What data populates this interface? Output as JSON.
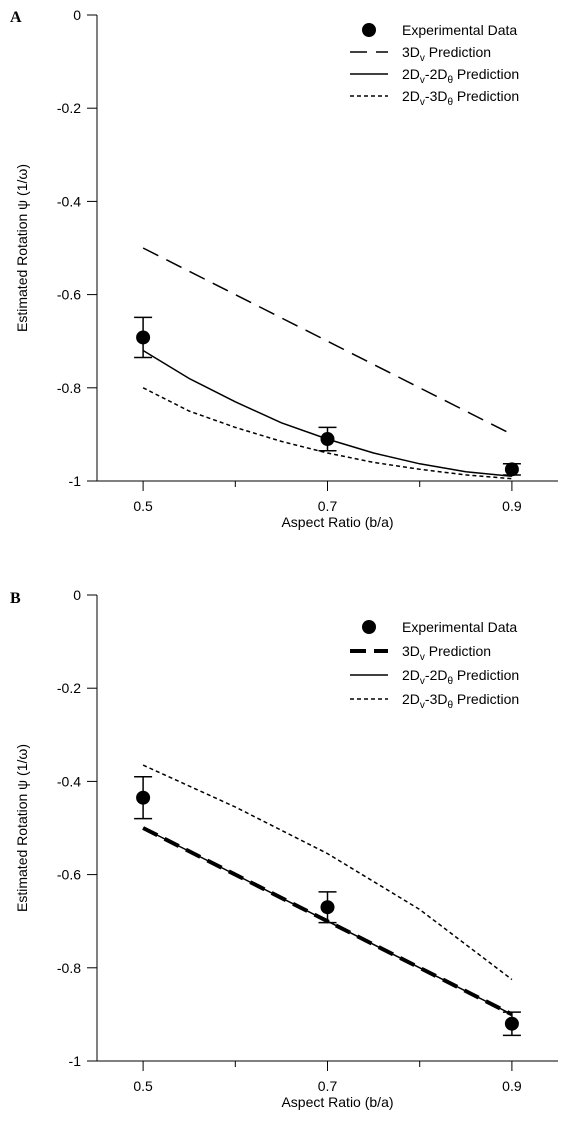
{
  "chart_data": [
    {
      "type": "line",
      "panel_label": "A",
      "xlabel": "Aspect Ratio (b/a)",
      "ylabel": "Estimated Rotation ψ  (1/ω)",
      "xlim": [
        0.45,
        0.95
      ],
      "ylim": [
        -1,
        0
      ],
      "xticks_major": [
        0.5,
        0.7,
        0.9
      ],
      "xticks_minor": [
        0.6,
        0.8
      ],
      "yticks": [
        0,
        -0.2,
        -0.4,
        -0.6,
        -0.8,
        -1
      ],
      "ytick_labels": [
        "0",
        "-0.2",
        "-0.4",
        "-0.6",
        "-0.8",
        "-1"
      ],
      "xtick_labels": [
        "0.5",
        "0.7",
        "0.9"
      ],
      "legend_position": "top-right",
      "legend": [
        {
          "key": "experimental",
          "text": "Experimental Data"
        },
        {
          "key": "3dv",
          "pre": "3D",
          "sub": "v",
          "post": " Prediction"
        },
        {
          "key": "2dv2dth",
          "pre": "2D",
          "sub": "v",
          "mid": "-2D",
          "sub2": "θ",
          "post": " Prediction"
        },
        {
          "key": "2dv3dth",
          "pre": "2D",
          "sub": "v",
          "mid": "-3D",
          "sub2": "θ",
          "post": " Prediction"
        }
      ],
      "experimental": {
        "x": [
          0.5,
          0.7,
          0.9
        ],
        "y": [
          -0.692,
          -0.91,
          -0.975
        ],
        "err": [
          0.043,
          0.025,
          0.012
        ]
      },
      "series": [
        {
          "key": "3dv",
          "style": "long-dash",
          "stroke_width": 1.5,
          "x": [
            0.5,
            0.9
          ],
          "y": [
            -0.5,
            -0.9
          ]
        },
        {
          "key": "2dv2dth",
          "style": "solid",
          "stroke_width": 1.5,
          "x": [
            0.5,
            0.55,
            0.6,
            0.65,
            0.7,
            0.75,
            0.8,
            0.85,
            0.9
          ],
          "y": [
            -0.72,
            -0.78,
            -0.83,
            -0.875,
            -0.91,
            -0.94,
            -0.963,
            -0.98,
            -0.99
          ]
        },
        {
          "key": "2dv3dth",
          "style": "short-dash",
          "stroke_width": 1.5,
          "x": [
            0.5,
            0.55,
            0.6,
            0.65,
            0.7,
            0.75,
            0.8,
            0.85,
            0.9
          ],
          "y": [
            -0.8,
            -0.85,
            -0.885,
            -0.915,
            -0.94,
            -0.96,
            -0.975,
            -0.987,
            -0.995
          ]
        }
      ]
    },
    {
      "type": "line",
      "panel_label": "B",
      "xlabel": "Aspect Ratio (b/a)",
      "ylabel": "Estimated Rotation ψ  (1/ω)",
      "xlim": [
        0.45,
        0.95
      ],
      "ylim": [
        -1,
        0
      ],
      "xticks_major": [
        0.5,
        0.7,
        0.9
      ],
      "xticks_minor": [
        0.6,
        0.8
      ],
      "yticks": [
        0,
        -0.2,
        -0.4,
        -0.6,
        -0.8,
        -1
      ],
      "ytick_labels": [
        "0",
        "-0.2",
        "-0.4",
        "-0.6",
        "-0.8",
        "-1"
      ],
      "xtick_labels": [
        "0.5",
        "0.7",
        "0.9"
      ],
      "legend_position": "top-right",
      "legend": [
        {
          "key": "experimental",
          "text": "Experimental Data"
        },
        {
          "key": "3dv",
          "pre": "3D",
          "sub": "v",
          "post": " Prediction"
        },
        {
          "key": "2dv2dth",
          "pre": "2D",
          "sub": "v",
          "mid": "-2D",
          "sub2": "θ",
          "post": " Prediction"
        },
        {
          "key": "2dv3dth",
          "pre": "2D",
          "sub": "v",
          "mid": "-3D",
          "sub2": "θ",
          "post": " Prediction"
        }
      ],
      "experimental": {
        "x": [
          0.5,
          0.7,
          0.9
        ],
        "y": [
          -0.435,
          -0.67,
          -0.92
        ],
        "err": [
          0.045,
          0.033,
          0.025
        ]
      },
      "series": [
        {
          "key": "3dv",
          "style": "bold-dash",
          "stroke_width": 4,
          "x": [
            0.5,
            0.9
          ],
          "y": [
            -0.5,
            -0.9
          ]
        },
        {
          "key": "2dv2dth",
          "style": "solid",
          "stroke_width": 1.5,
          "x": [
            0.5,
            0.9
          ],
          "y": [
            -0.5,
            -0.9
          ]
        },
        {
          "key": "2dv3dth",
          "style": "short-dash",
          "stroke_width": 1.5,
          "x": [
            0.5,
            0.6,
            0.7,
            0.8,
            0.9
          ],
          "y": [
            -0.365,
            -0.455,
            -0.555,
            -0.675,
            -0.825
          ]
        }
      ]
    }
  ]
}
